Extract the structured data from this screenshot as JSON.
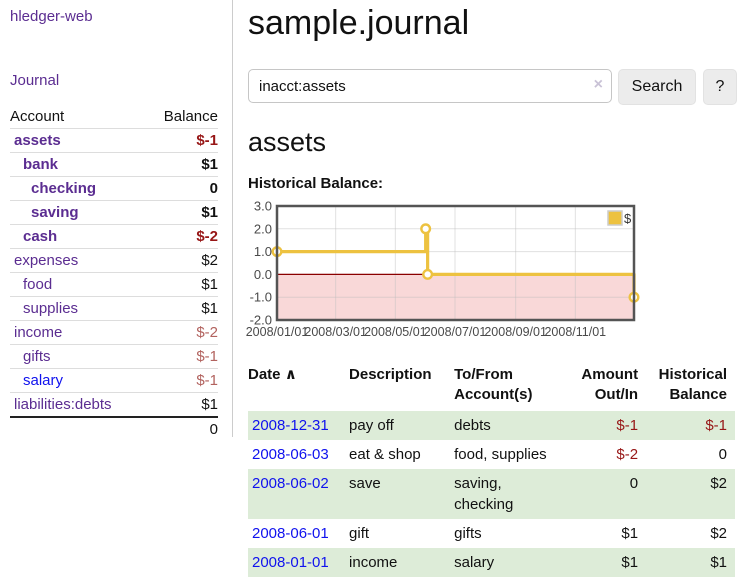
{
  "sidebar": {
    "brand": "hledger-web",
    "nav": {
      "journal": "Journal"
    },
    "accounts_table": {
      "headers": {
        "account": "Account",
        "balance": "Balance"
      },
      "rows": [
        {
          "name": "assets",
          "level": 1,
          "bold": true,
          "link": "purple",
          "balance": "$-1",
          "balance_style": "neg-strong"
        },
        {
          "name": "bank",
          "level": 2,
          "bold": true,
          "link": "purple",
          "balance": "$1",
          "balance_style": "pos-strong"
        },
        {
          "name": "checking",
          "level": 3,
          "bold": true,
          "link": "purple",
          "balance": "0",
          "balance_style": "pos-strong"
        },
        {
          "name": "saving",
          "level": 3,
          "bold": true,
          "link": "purple",
          "balance": "$1",
          "balance_style": "pos-strong"
        },
        {
          "name": "cash",
          "level": 2,
          "bold": true,
          "link": "purple",
          "balance": "$-2",
          "balance_style": "neg-strong"
        },
        {
          "name": "expenses",
          "level": 1,
          "bold": false,
          "link": "purple",
          "balance": "$2",
          "balance_style": "pos"
        },
        {
          "name": "food",
          "level": 2,
          "bold": false,
          "link": "purple",
          "balance": "$1",
          "balance_style": "pos"
        },
        {
          "name": "supplies",
          "level": 2,
          "bold": false,
          "link": "purple",
          "balance": "$1",
          "balance_style": "pos"
        },
        {
          "name": "income",
          "level": 1,
          "bold": false,
          "link": "purple",
          "balance": "$-2",
          "balance_style": "neg-soft"
        },
        {
          "name": "gifts",
          "level": 2,
          "bold": false,
          "link": "purple",
          "balance": "$-1",
          "balance_style": "neg-soft"
        },
        {
          "name": "salary",
          "level": 2,
          "bold": false,
          "link": "blue",
          "balance": "$-1",
          "balance_style": "neg-soft"
        },
        {
          "name": "liabilities:debts",
          "level": 1,
          "bold": false,
          "link": "purple",
          "balance": "$1",
          "balance_style": "pos"
        }
      ],
      "total": "0"
    }
  },
  "header": {
    "title": "sample.journal"
  },
  "search": {
    "value": "inacct:assets",
    "clear_icon": "×",
    "button_label": "Search",
    "help_label": "?"
  },
  "account_page": {
    "heading": "assets",
    "chart_label": "Historical Balance:"
  },
  "chart_data": {
    "type": "line",
    "title": "Historical Balance:",
    "xlim_days": [
      0,
      365
    ],
    "ylim": [
      -2,
      3
    ],
    "y_ticks": [
      {
        "v": 3,
        "label": "3.0"
      },
      {
        "v": 2,
        "label": "2.0"
      },
      {
        "v": 1,
        "label": "1.0"
      },
      {
        "v": 0,
        "label": "0.0"
      },
      {
        "v": -1,
        "label": "-1.0"
      },
      {
        "v": -2,
        "label": "-2.0"
      }
    ],
    "x_ticks": [
      {
        "day": 0,
        "label": "2008/01/01"
      },
      {
        "day": 60,
        "label": "2008/03/01"
      },
      {
        "day": 121,
        "label": "2008/05/01"
      },
      {
        "day": 182,
        "label": "2008/07/01"
      },
      {
        "day": 244,
        "label": "2008/09/01"
      },
      {
        "day": 305,
        "label": "2008/11/01"
      }
    ],
    "series": [
      {
        "name": "$",
        "color": "#edc240",
        "points_day_value": [
          [
            0,
            1
          ],
          [
            152,
            1
          ],
          [
            152,
            2
          ],
          [
            154,
            2
          ],
          [
            154,
            0
          ],
          [
            365,
            0
          ],
          [
            365,
            -1
          ]
        ],
        "markers_day_value": [
          [
            0,
            1
          ],
          [
            152,
            2
          ],
          [
            154,
            0
          ],
          [
            365,
            -1
          ]
        ]
      }
    ],
    "legend": {
      "label": "$",
      "swatch_color": "#edc240",
      "position": "top-right"
    },
    "zero_line_color": "#8b0000",
    "negative_region_color": "#f9d8d8",
    "grid_color": "#bdbdbd",
    "border_color": "#545454",
    "tick_color": "#4a4a4a"
  },
  "register": {
    "headers": {
      "date": "Date",
      "description": "Description",
      "accounts": "To/From Account(s)",
      "amount": "Amount Out/In",
      "balance": "Historical Balance"
    },
    "sort_icon": "∧",
    "rows": [
      {
        "date": "2008-12-31",
        "description": "pay off",
        "accounts": "debts",
        "amount": "$-1",
        "amount_neg": true,
        "balance": "$-1",
        "balance_neg": true,
        "stripe": true
      },
      {
        "date": "2008-06-03",
        "description": "eat & shop",
        "accounts": "food, supplies",
        "amount": "$-2",
        "amount_neg": true,
        "balance": "0",
        "balance_neg": false,
        "stripe": false
      },
      {
        "date": "2008-06-02",
        "description": "save",
        "accounts": "saving, checking",
        "amount": "0",
        "amount_neg": false,
        "balance": "$2",
        "balance_neg": false,
        "stripe": true
      },
      {
        "date": "2008-06-01",
        "description": "gift",
        "accounts": "gifts",
        "amount": "$1",
        "amount_neg": false,
        "balance": "$2",
        "balance_neg": false,
        "stripe": false
      },
      {
        "date": "2008-01-01",
        "description": "income",
        "accounts": "salary",
        "amount": "$1",
        "amount_neg": false,
        "balance": "$1",
        "balance_neg": false,
        "stripe": true
      }
    ]
  }
}
